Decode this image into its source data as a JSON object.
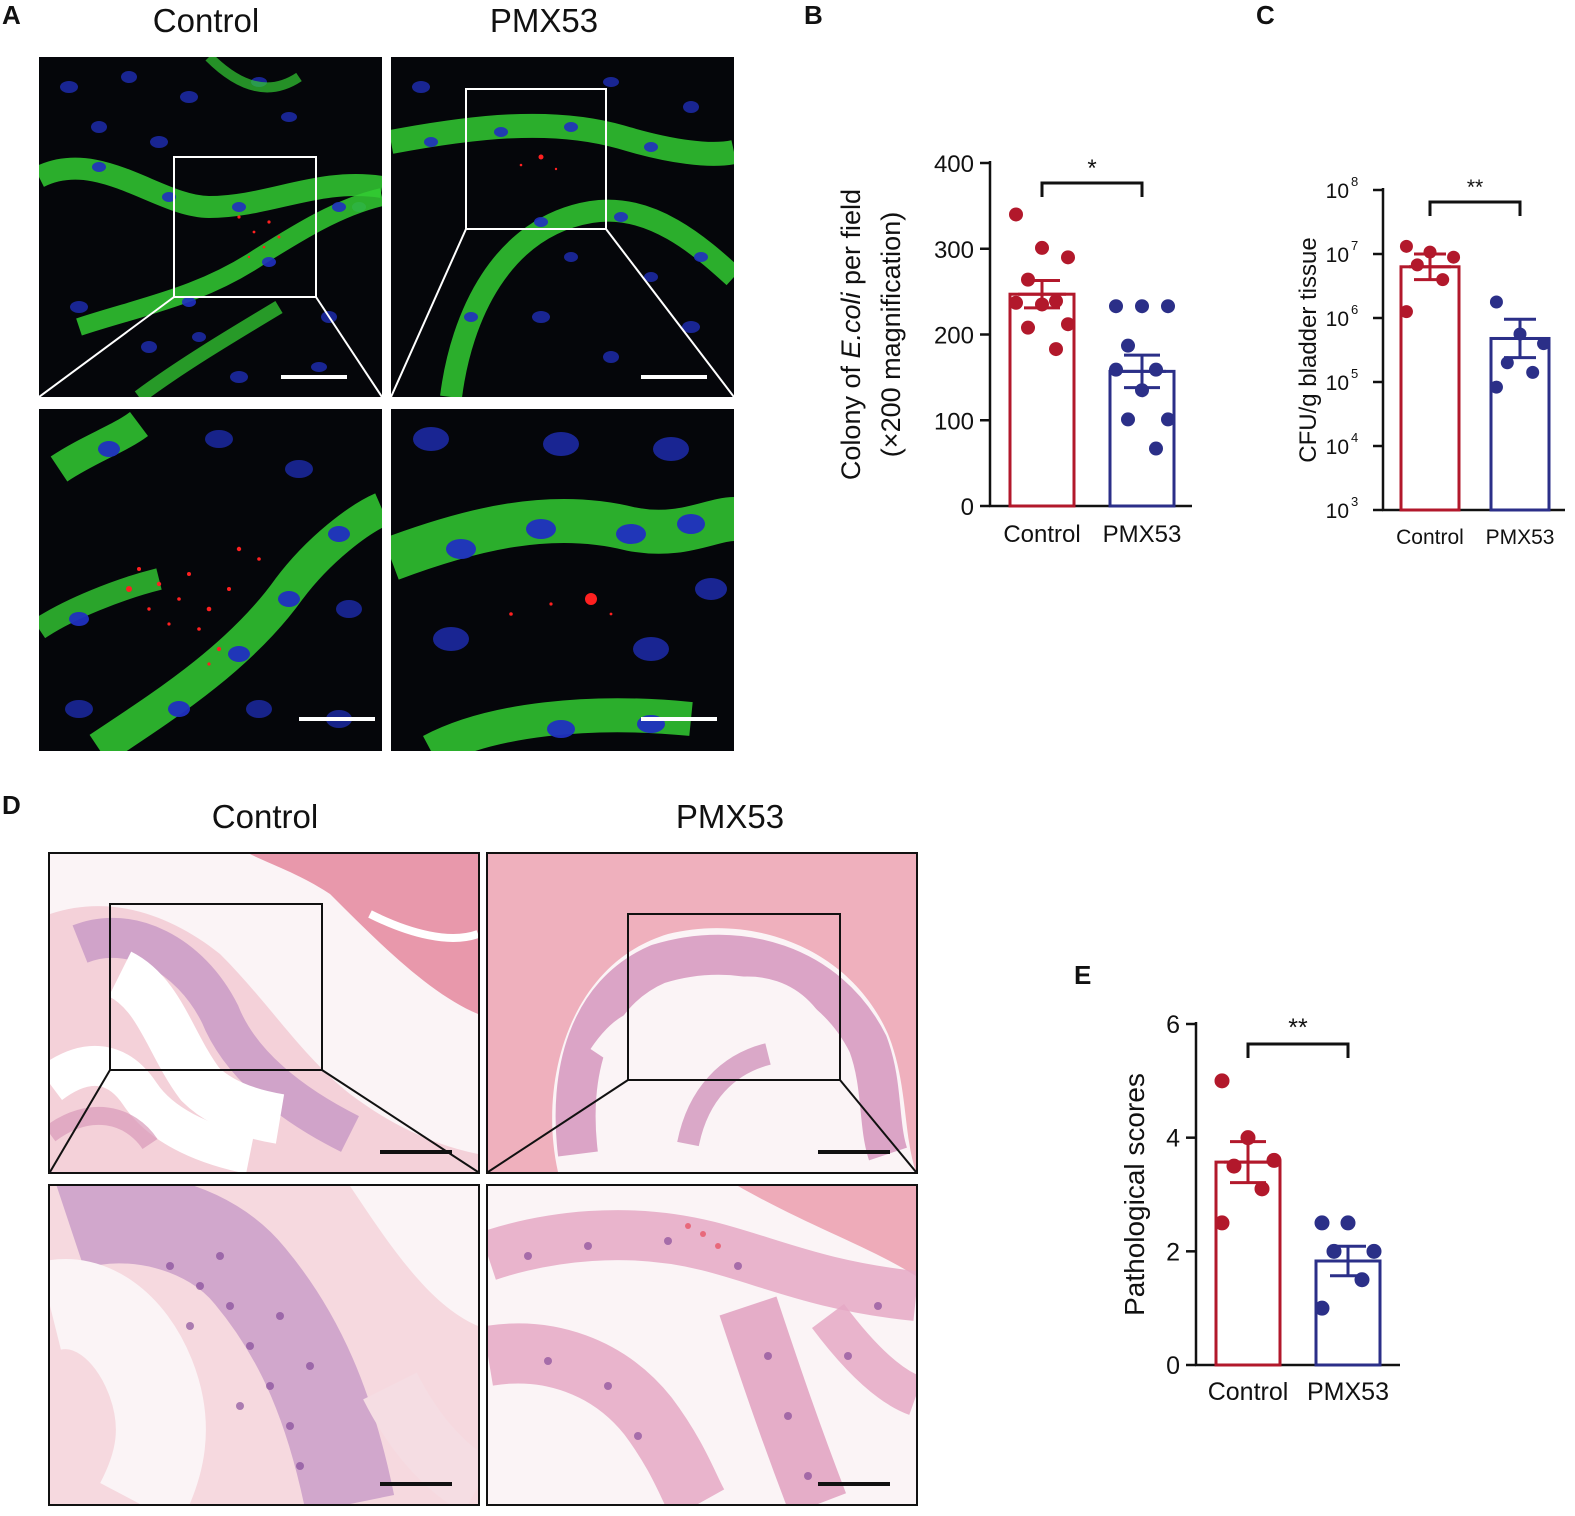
{
  "panels": {
    "A": {
      "letter": "A",
      "titles": [
        "Control",
        "PMX53"
      ]
    },
    "B": {
      "letter": "B"
    },
    "C": {
      "letter": "C"
    },
    "D": {
      "letter": "D",
      "titles": [
        "Control",
        "PMX53"
      ]
    },
    "E": {
      "letter": "E"
    }
  },
  "colors": {
    "control": "#b2182b",
    "pmx53": "#2b2f88",
    "nuclei": "#2030c0",
    "membrane": "#33cc33",
    "bacteria": "#ff2020",
    "he_pink": "#e9a1b2",
    "he_purple": "#8a4f9e"
  },
  "chart_data": [
    {
      "id": "B",
      "type": "bar",
      "categories": [
        "Control",
        "PMX53"
      ],
      "ylabel_parts": [
        "Colony of ",
        "E.coli",
        " per field"
      ],
      "ylabel_line2": "(×200 magnification)",
      "yticks": [
        0,
        100,
        200,
        300,
        400
      ],
      "ylim": [
        0,
        400
      ],
      "scale": "linear",
      "means": [
        247,
        157
      ],
      "sem": [
        16,
        19
      ],
      "points": [
        [
          340,
          301,
          290,
          264,
          239,
          237,
          235,
          212,
          208,
          183
        ],
        [
          233,
          233,
          233,
          187,
          159,
          159,
          135,
          101,
          101,
          67
        ]
      ],
      "significance": "*"
    },
    {
      "id": "C",
      "type": "bar",
      "categories": [
        "Control",
        "PMX53"
      ],
      "ylabel": "CFU/g bladder tissue",
      "yticks": [
        "10",
        "10",
        "10",
        "10",
        "10",
        "10"
      ],
      "ytick_exponents": [
        "3",
        "4",
        "5",
        "6",
        "7",
        "8"
      ],
      "ylim": [
        3,
        8
      ],
      "scale": "log10",
      "means": [
        6.8,
        5.68
      ],
      "sem": [
        0.2,
        0.3
      ],
      "points": [
        [
          7.12,
          7.03,
          6.95,
          6.83,
          6.6,
          6.1
        ],
        [
          6.25,
          5.75,
          5.6,
          5.3,
          5.15,
          4.92
        ]
      ],
      "significance": "**"
    },
    {
      "id": "E",
      "type": "bar",
      "categories": [
        "Control",
        "PMX53"
      ],
      "ylabel": "Pathological scores",
      "yticks": [
        0,
        2,
        4,
        6
      ],
      "ylim": [
        0,
        6
      ],
      "scale": "linear",
      "means": [
        3.57,
        1.83
      ],
      "sem": [
        0.36,
        0.26
      ],
      "points": [
        [
          5,
          4,
          3.6,
          3.5,
          3.1,
          2.5
        ],
        [
          2.5,
          2.5,
          2,
          2,
          1.5,
          1
        ]
      ],
      "significance": "**"
    }
  ]
}
